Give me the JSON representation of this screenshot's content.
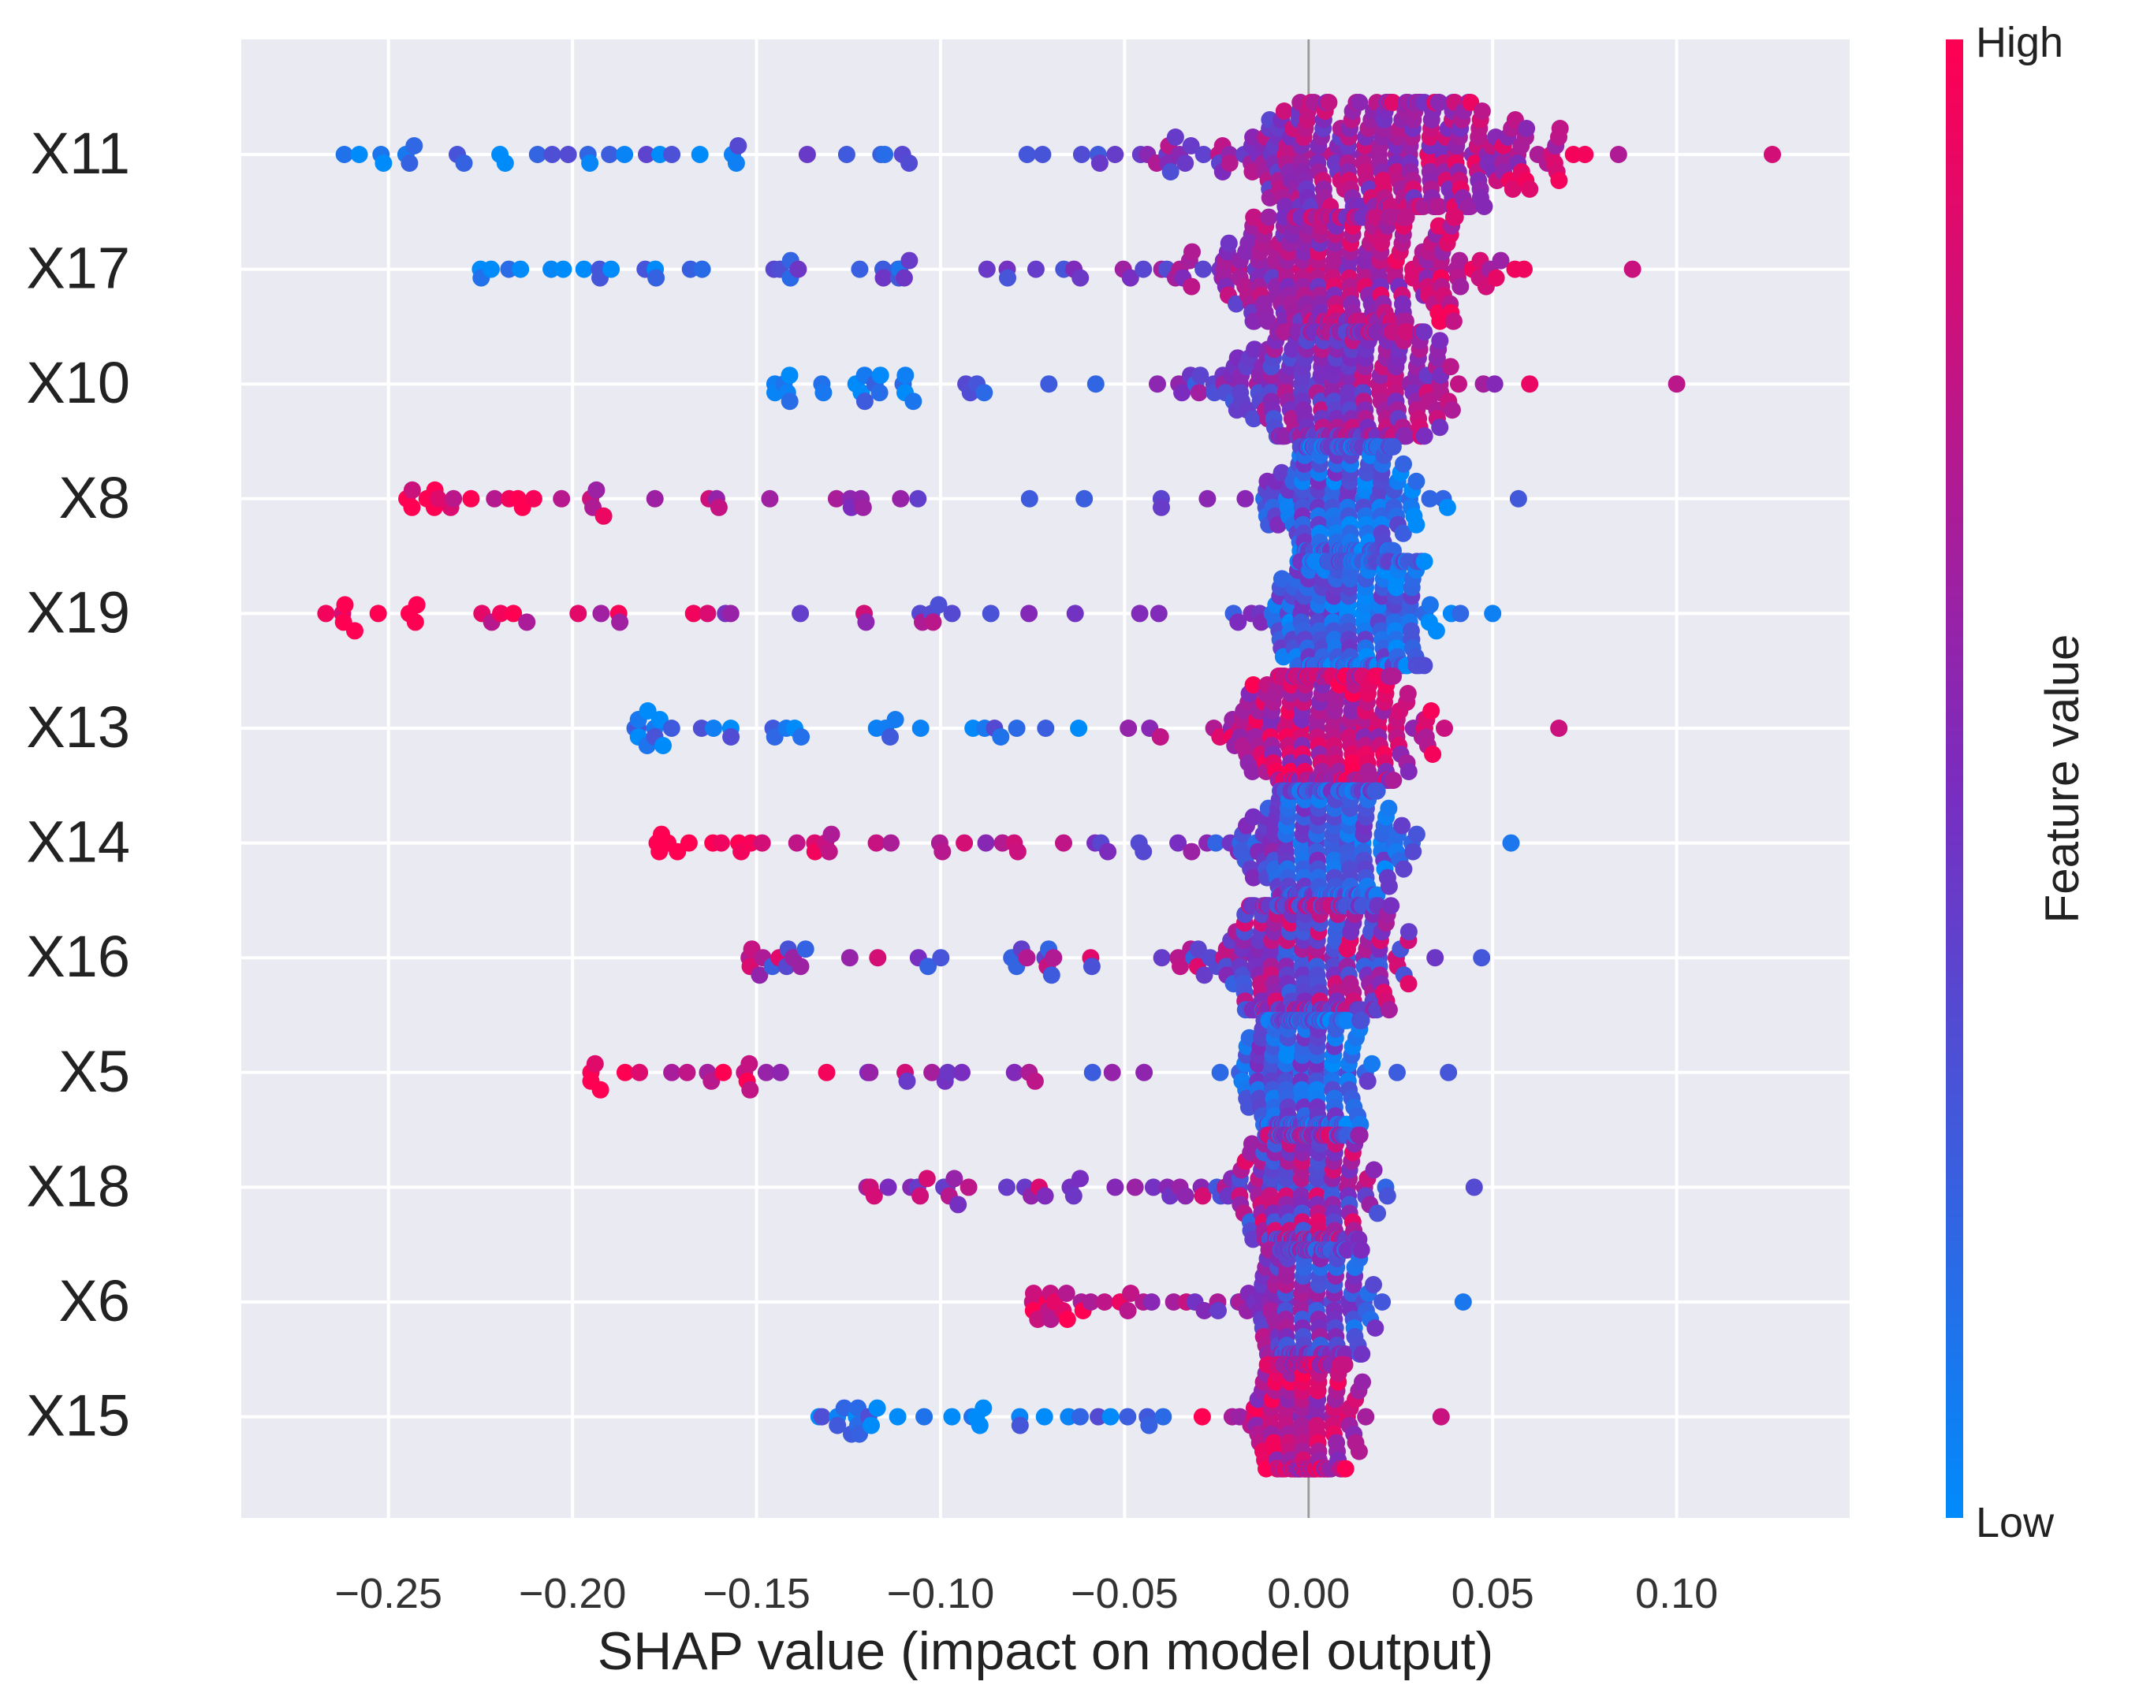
{
  "chart_data": {
    "type": "scatter",
    "subtype": "shap-beeswarm",
    "xlabel": "SHAP value (impact on model output)",
    "ylabel": "",
    "xlim": [
      -0.29,
      0.147
    ],
    "xticks": [
      -0.25,
      -0.2,
      -0.15,
      -0.1,
      -0.05,
      0.0,
      0.05,
      0.1
    ],
    "xtick_labels": [
      "−0.25",
      "−0.20",
      "−0.15",
      "−0.10",
      "−0.05",
      "0.00",
      "0.05",
      "0.10"
    ],
    "zero_line": 0.0,
    "grid": true,
    "background": "#EAEAF2",
    "features": [
      {
        "name": "X11",
        "min": -0.262,
        "max": 0.126,
        "center": 0.02,
        "spread": 0.06,
        "n": 330,
        "trend": "high-right"
      },
      {
        "name": "X17",
        "min": -0.225,
        "max": 0.088,
        "center": 0.01,
        "spread": 0.045,
        "n": 320,
        "trend": "high-right"
      },
      {
        "name": "X10",
        "min": -0.145,
        "max": 0.1,
        "center": 0.01,
        "spread": 0.04,
        "n": 310,
        "trend": "high-right"
      },
      {
        "name": "X8",
        "min": -0.245,
        "max": 0.057,
        "center": 0.01,
        "spread": 0.025,
        "n": 300,
        "trend": "high-left"
      },
      {
        "name": "X19",
        "min": -0.267,
        "max": 0.05,
        "center": 0.012,
        "spread": 0.025,
        "n": 300,
        "trend": "high-left"
      },
      {
        "name": "X13",
        "min": -0.183,
        "max": 0.068,
        "center": 0.005,
        "spread": 0.03,
        "n": 300,
        "trend": "high-center"
      },
      {
        "name": "X14",
        "min": -0.177,
        "max": 0.055,
        "center": 0.005,
        "spread": 0.025,
        "n": 300,
        "trend": "high-left"
      },
      {
        "name": "X16",
        "min": -0.152,
        "max": 0.047,
        "center": 0.0,
        "spread": 0.03,
        "n": 300,
        "trend": "mixed"
      },
      {
        "name": "X5",
        "min": -0.195,
        "max": 0.038,
        "center": 0.0,
        "spread": 0.02,
        "n": 300,
        "trend": "high-left"
      },
      {
        "name": "X18",
        "min": -0.12,
        "max": 0.045,
        "center": 0.0,
        "spread": 0.02,
        "n": 290,
        "trend": "mixed"
      },
      {
        "name": "X6",
        "min": -0.075,
        "max": 0.042,
        "center": 0.0,
        "spread": 0.018,
        "n": 280,
        "trend": "high-left"
      },
      {
        "name": "X15",
        "min": -0.133,
        "max": 0.036,
        "center": 0.0,
        "spread": 0.015,
        "n": 280,
        "trend": "high-center"
      }
    ],
    "colorbar": {
      "label": "Feature value",
      "high_label": "High",
      "low_label": "Low",
      "high_color": "#FF0052",
      "mid_color": "#7B2CBF",
      "low_color": "#008BFB"
    }
  }
}
